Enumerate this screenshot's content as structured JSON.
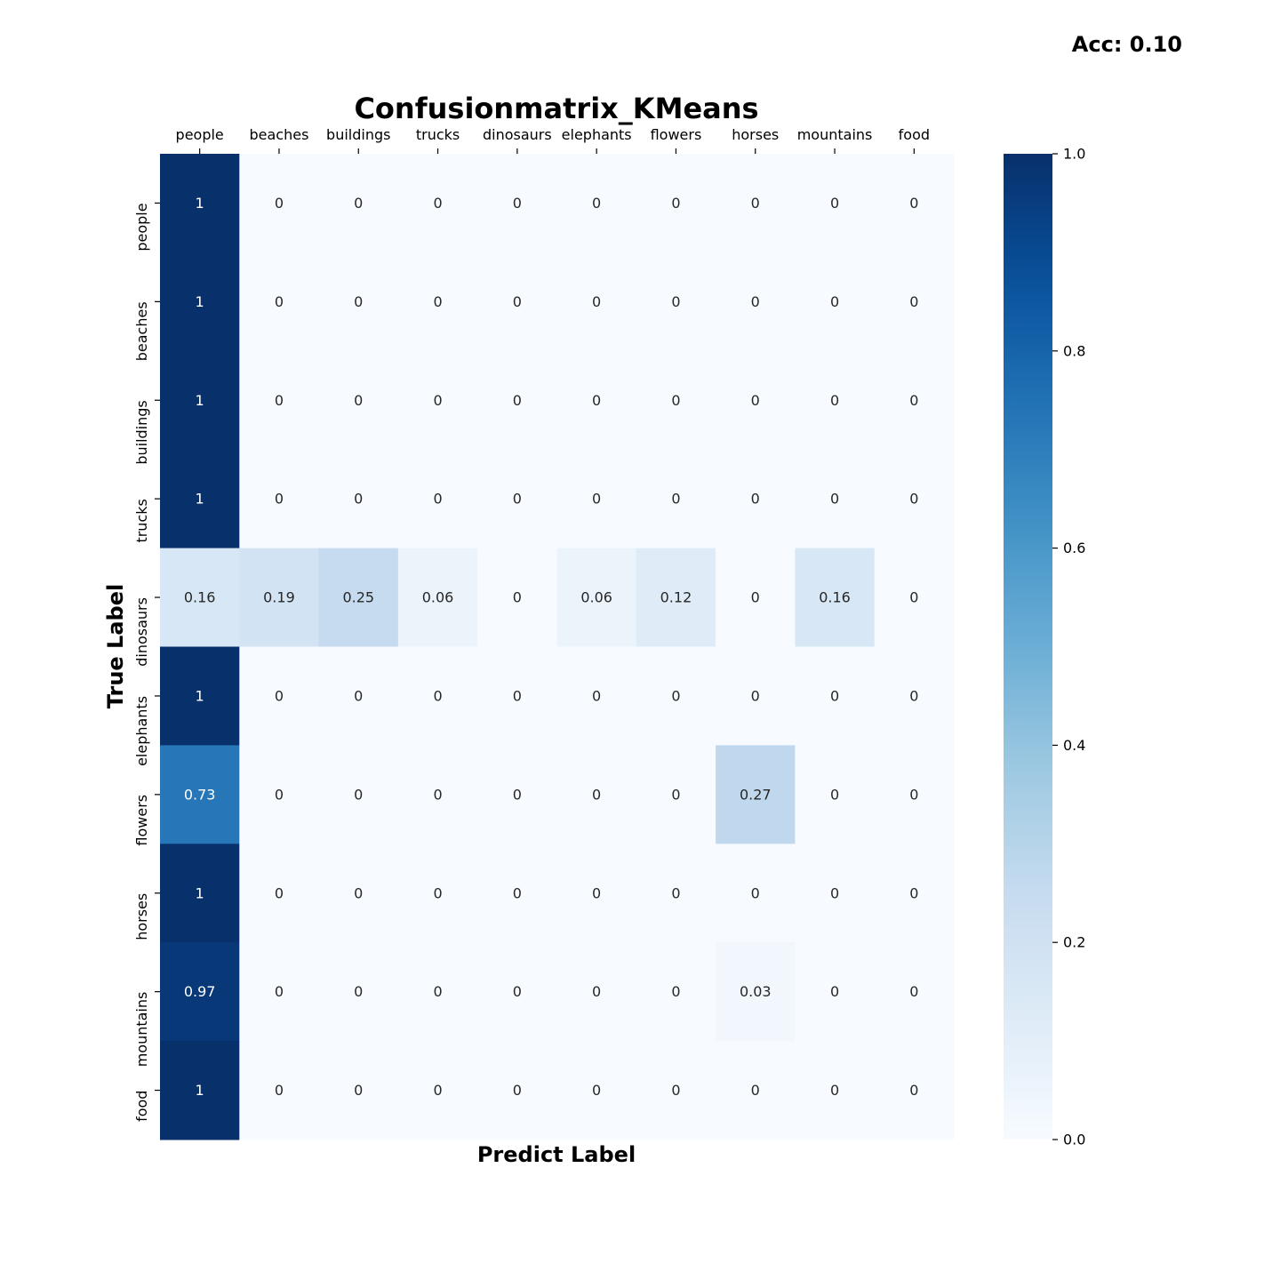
{
  "accuracy_label": "Acc: 0.10",
  "chart_data": {
    "type": "heatmap",
    "title": "Confusionmatrix_KMeans",
    "xlabel": "Predict Label",
    "ylabel": "True Label",
    "x_categories": [
      "people",
      "beaches",
      "buildings",
      "trucks",
      "dinosaurs",
      "elephants",
      "flowers",
      "horses",
      "mountains",
      "food"
    ],
    "y_categories": [
      "people",
      "beaches",
      "buildings",
      "trucks",
      "dinosaurs",
      "elephants",
      "flowers",
      "horses",
      "mountains",
      "food"
    ],
    "values": [
      [
        1,
        0,
        0,
        0,
        0,
        0,
        0,
        0,
        0,
        0
      ],
      [
        1,
        0,
        0,
        0,
        0,
        0,
        0,
        0,
        0,
        0
      ],
      [
        1,
        0,
        0,
        0,
        0,
        0,
        0,
        0,
        0,
        0
      ],
      [
        1,
        0,
        0,
        0,
        0,
        0,
        0,
        0,
        0,
        0
      ],
      [
        0.16,
        0.19,
        0.25,
        0.06,
        0,
        0.06,
        0.12,
        0,
        0.16,
        0
      ],
      [
        1,
        0,
        0,
        0,
        0,
        0,
        0,
        0,
        0,
        0
      ],
      [
        0.73,
        0,
        0,
        0,
        0,
        0,
        0,
        0.27,
        0,
        0
      ],
      [
        1,
        0,
        0,
        0,
        0,
        0,
        0,
        0,
        0,
        0
      ],
      [
        0.97,
        0,
        0,
        0,
        0,
        0,
        0,
        0.03,
        0,
        0
      ],
      [
        1,
        0,
        0,
        0,
        0,
        0,
        0,
        0,
        0,
        0
      ]
    ],
    "colormap": "Blues",
    "colorbar": {
      "range": [
        0,
        1
      ],
      "ticks": [
        0,
        0.2,
        0.4,
        0.6,
        0.8,
        1
      ],
      "tick_labels": [
        "0.0",
        "0.2",
        "0.4",
        "0.6",
        "0.8",
        "1.0"
      ]
    },
    "x_tick_position": "top",
    "grid": false
  }
}
